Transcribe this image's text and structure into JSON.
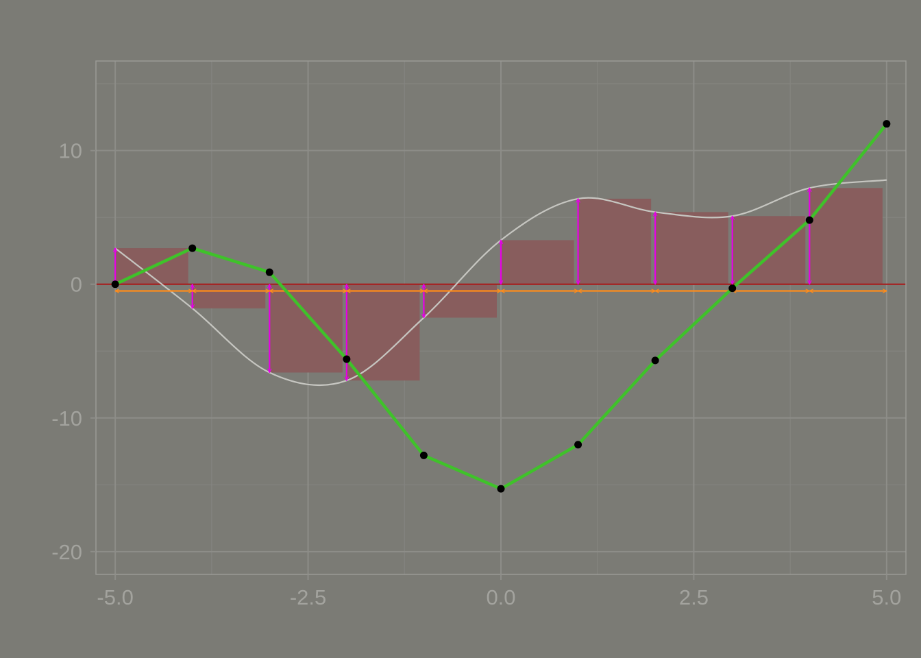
{
  "chart_data": {
    "type": "line",
    "title": "",
    "xlabel": "",
    "ylabel": "",
    "xlim": [
      -5.25,
      5.25
    ],
    "ylim": [
      -21.7,
      16.7
    ],
    "x_ticks": [
      {
        "value": -5,
        "label": "-5.0"
      },
      {
        "value": -2.5,
        "label": "-2.5"
      },
      {
        "value": 0,
        "label": "0.0"
      },
      {
        "value": 2.5,
        "label": "2.5"
      },
      {
        "value": 5,
        "label": "5.0"
      }
    ],
    "y_ticks": [
      {
        "value": 10,
        "label": "10"
      },
      {
        "value": 0,
        "label": "0"
      },
      {
        "value": -10,
        "label": "-10"
      },
      {
        "value": -20,
        "label": "-20"
      }
    ],
    "x_minor": [
      -3.75,
      -1.25,
      1.25,
      3.75
    ],
    "y_minor": [
      15,
      5,
      -5,
      -15
    ],
    "grid": true,
    "legend": "none",
    "reference_line_y": 0,
    "series": [
      {
        "type": "line",
        "x": [
          -5,
          -4,
          -3,
          -2,
          -1,
          0,
          1,
          2,
          3,
          4,
          5
        ],
        "y": [
          0.0,
          2.7,
          0.9,
          -5.6,
          -12.8,
          -15.3,
          -12.0,
          -5.7,
          -0.3,
          4.8,
          12.0
        ]
      },
      {
        "type": "step_bar",
        "x_start": [
          -5,
          -4,
          -3,
          -2,
          -1,
          0,
          1,
          2,
          3,
          4
        ],
        "x_end": [
          -4,
          -3,
          -2,
          -1,
          0,
          1,
          2,
          3,
          4,
          5
        ],
        "y": [
          2.7,
          -1.8,
          -6.6,
          -7.2,
          -2.5,
          3.3,
          6.4,
          5.4,
          5.1,
          7.2
        ]
      },
      {
        "type": "curve",
        "x": [
          -5,
          -4,
          -3,
          -2,
          -1,
          0,
          1,
          2,
          3,
          4,
          5
        ],
        "y": [
          2.7,
          -1.8,
          -6.6,
          -7.2,
          -2.5,
          3.3,
          6.4,
          5.4,
          5.1,
          7.2,
          7.8
        ]
      }
    ],
    "vertical_arrows_at": [
      -5,
      -4,
      -3,
      -2,
      -1,
      0,
      1,
      2,
      3,
      4
    ],
    "horizontal_arrows": {
      "y": -0.5,
      "intervals": [
        [
          -5,
          -4
        ],
        [
          -4,
          -3
        ],
        [
          -3,
          -2
        ],
        [
          -2,
          -1
        ],
        [
          -1,
          0
        ],
        [
          0,
          1
        ],
        [
          1,
          2
        ],
        [
          2,
          3
        ],
        [
          3,
          4
        ],
        [
          4,
          5
        ]
      ]
    },
    "colors": {
      "background": "#7b7b75",
      "panel_border": "#9a9a95",
      "grid_major": "#8d8d88",
      "grid_minor": "#848480",
      "line": "#3fc22a",
      "points": "#000000",
      "bars": "#885d5d",
      "curve": "#c6c6c1",
      "zero_line": "#a52222",
      "vertical_arrows": "#e600e6",
      "horizontal_arrows": "#ff8c1a",
      "tick_text": "#a3a39e"
    }
  }
}
